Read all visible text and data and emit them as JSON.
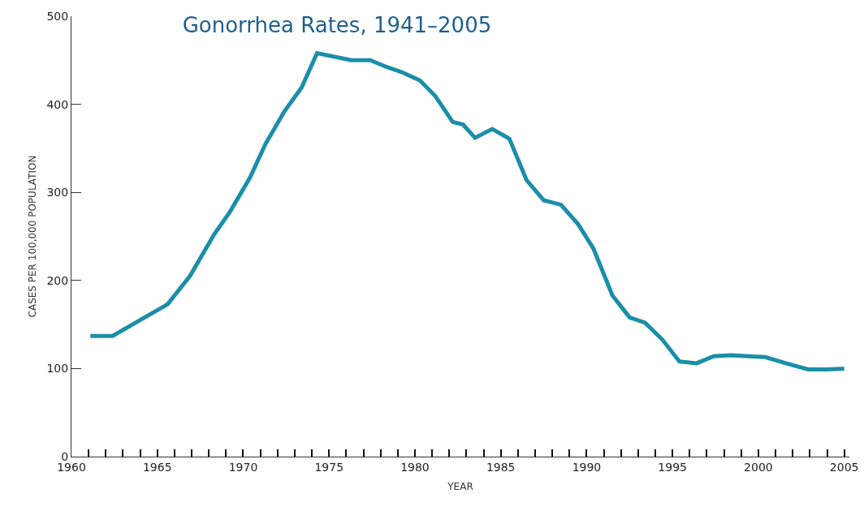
{
  "chart_data": {
    "type": "line",
    "title": "Gonorrhea Rates, 1941–2005",
    "xlabel": "YEAR",
    "ylabel": "CASES PER 100,000 POPULATION",
    "x": [
      1961.1,
      1962.4,
      1964.0,
      1965.6,
      1966.9,
      1968.3,
      1969.2,
      1970.4,
      1971.3,
      1972.4,
      1973.4,
      1974.3,
      1976.3,
      1977.4,
      1978.4,
      1979.3,
      1980.3,
      1981.2,
      1982.2,
      1982.8,
      1983.5,
      1984.5,
      1985.5,
      1986.5,
      1987.5,
      1988.5,
      1989.5,
      1990.4,
      1991.5,
      1992.5,
      1993.4,
      1994.4,
      1995.4,
      1996.4,
      1997.4,
      1998.4,
      1999.4,
      2000.4,
      2001.6,
      2002.9,
      2004.0,
      2005.0
    ],
    "series": [
      {
        "color": "#1b8ea8",
        "values": [
          137,
          137,
          155,
          173,
          205,
          252,
          277,
          317,
          355,
          392,
          419,
          458,
          450,
          450,
          442,
          436,
          427,
          409,
          380,
          377,
          362,
          372,
          361,
          314,
          291,
          286,
          264,
          236,
          183,
          158,
          152,
          133,
          108,
          106,
          114,
          115,
          114,
          113,
          106,
          99,
          99,
          100
        ]
      }
    ],
    "xlim": [
      1960,
      2005.3
    ],
    "ylim": [
      0,
      500
    ],
    "xticks": [
      1960,
      {
        "value": 1961,
        "label": null
      },
      {
        "value": 1962,
        "label": null
      },
      {
        "value": 1963,
        "label": null
      },
      {
        "value": 1964,
        "label": null
      },
      1965,
      {
        "value": 1966,
        "label": null
      },
      {
        "value": 1967,
        "label": null
      },
      {
        "value": 1968,
        "label": null
      },
      {
        "value": 1969,
        "label": null
      },
      1970,
      {
        "value": 1971,
        "label": null
      },
      {
        "value": 1972,
        "label": null
      },
      {
        "value": 1973,
        "label": null
      },
      {
        "value": 1974,
        "label": null
      },
      1975,
      {
        "value": 1976,
        "label": null
      },
      {
        "value": 1977,
        "label": null
      },
      {
        "value": 1978,
        "label": null
      },
      {
        "value": 1979,
        "label": null
      },
      1980,
      {
        "value": 1981,
        "label": null
      },
      {
        "value": 1982,
        "label": null
      },
      {
        "value": 1983,
        "label": null
      },
      {
        "value": 1984,
        "label": null
      },
      1985,
      {
        "value": 1986,
        "label": null
      },
      {
        "value": 1987,
        "label": null
      },
      {
        "value": 1988,
        "label": null
      },
      {
        "value": 1989,
        "label": null
      },
      1990,
      {
        "value": 1991,
        "label": null
      },
      {
        "value": 1992,
        "label": null
      },
      {
        "value": 1993,
        "label": null
      },
      {
        "value": 1994,
        "label": null
      },
      1995,
      {
        "value": 1996,
        "label": null
      },
      {
        "value": 1997,
        "label": null
      },
      {
        "value": 1998,
        "label": null
      },
      {
        "value": 1999,
        "label": null
      },
      2000,
      {
        "value": 2001,
        "label": null
      },
      {
        "value": 2002,
        "label": null
      },
      {
        "value": 2003,
        "label": null
      },
      {
        "value": 2004,
        "label": null
      },
      2005
    ],
    "yticks": [
      0,
      100,
      200,
      300,
      400,
      500
    ],
    "grid": false,
    "legend": false,
    "marker": "none",
    "line_style": "solid"
  }
}
